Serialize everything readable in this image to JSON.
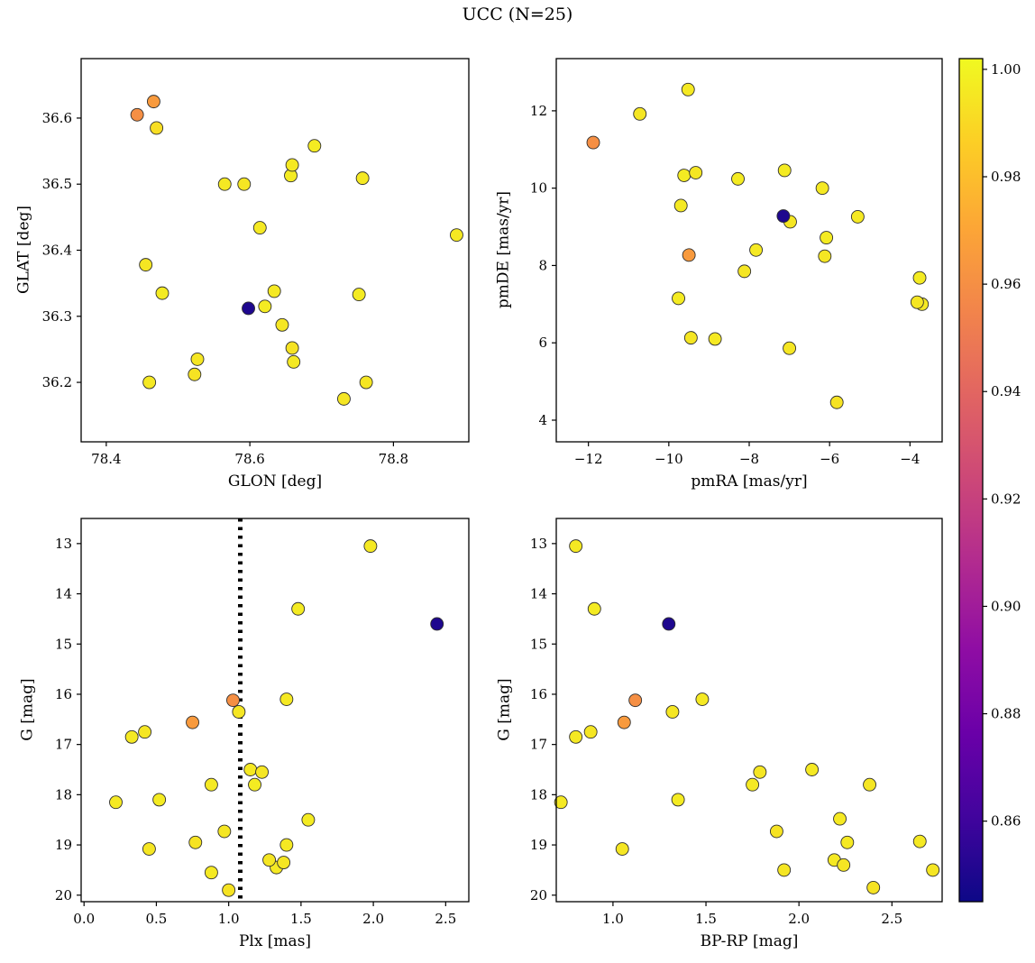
{
  "figure": {
    "title": "UCC (N=25)"
  },
  "colorbar": {
    "colormap": "plasma",
    "vmin": 0.845,
    "vmax": 1.002,
    "ticks": [
      [
        1.0,
        "1.00"
      ],
      [
        0.98,
        "0.98"
      ],
      [
        0.96,
        "0.96"
      ],
      [
        0.94,
        "0.94"
      ],
      [
        0.92,
        "0.92"
      ],
      [
        0.9,
        "0.90"
      ],
      [
        0.88,
        "0.88"
      ],
      [
        0.86,
        "0.86"
      ]
    ]
  },
  "point_format": "[x, y, color_value]",
  "chart_data": [
    {
      "type": "scatter",
      "xlabel": "GLON [deg]",
      "ylabel": "GLAT [deg]",
      "xlim": [
        78.365,
        78.905
      ],
      "ylim": [
        36.11,
        36.69
      ],
      "xticks": [
        [
          78.4,
          "78.4"
        ],
        [
          78.6,
          "78.6"
        ],
        [
          78.8,
          "78.8"
        ]
      ],
      "yticks": [
        [
          36.2,
          "36.2"
        ],
        [
          36.3,
          "36.3"
        ],
        [
          36.4,
          "36.4"
        ],
        [
          36.5,
          "36.5"
        ],
        [
          36.6,
          "36.6"
        ]
      ],
      "points": [
        [
          78.443,
          36.605,
          0.96
        ],
        [
          78.466,
          36.625,
          0.965
        ],
        [
          78.47,
          36.585,
          0.992
        ],
        [
          78.455,
          36.378,
          0.995
        ],
        [
          78.478,
          36.335,
          0.997
        ],
        [
          78.46,
          36.2,
          0.996
        ],
        [
          78.527,
          36.235,
          0.995
        ],
        [
          78.523,
          36.212,
          0.994
        ],
        [
          78.565,
          36.5,
          0.996
        ],
        [
          78.592,
          36.5,
          0.995
        ],
        [
          78.598,
          36.312,
          0.85
        ],
        [
          78.614,
          36.434,
          0.996
        ],
        [
          78.621,
          36.315,
          0.997
        ],
        [
          78.634,
          36.338,
          0.996
        ],
        [
          78.645,
          36.287,
          0.995
        ],
        [
          78.659,
          36.529,
          0.996
        ],
        [
          78.657,
          36.513,
          0.997
        ],
        [
          78.659,
          36.252,
          0.994
        ],
        [
          78.661,
          36.231,
          0.996
        ],
        [
          78.69,
          36.558,
          0.997
        ],
        [
          78.731,
          36.175,
          0.995
        ],
        [
          78.757,
          36.509,
          0.996
        ],
        [
          78.752,
          36.333,
          0.997
        ],
        [
          78.762,
          36.2,
          0.995
        ],
        [
          78.888,
          36.423,
          0.996
        ]
      ]
    },
    {
      "type": "scatter",
      "xlabel": "pmRA [mas/yr]",
      "ylabel": "pmDE [mas/yr]",
      "xlim": [
        -12.8,
        -3.2
      ],
      "ylim": [
        3.44,
        13.35
      ],
      "xticks": [
        [
          -12,
          "−12"
        ],
        [
          -10,
          "−10"
        ],
        [
          -8,
          "−8"
        ],
        [
          -6,
          "−6"
        ],
        [
          -4,
          "−4"
        ]
      ],
      "yticks": [
        [
          4,
          "4"
        ],
        [
          6,
          "6"
        ],
        [
          8,
          "8"
        ],
        [
          10,
          "10"
        ],
        [
          12,
          "12"
        ]
      ],
      "points": [
        [
          -11.88,
          11.18,
          0.96
        ],
        [
          -10.72,
          11.92,
          0.995
        ],
        [
          -9.52,
          12.55,
          0.996
        ],
        [
          -9.62,
          10.33,
          0.997
        ],
        [
          -9.33,
          10.4,
          0.995
        ],
        [
          -9.7,
          9.55,
          0.996
        ],
        [
          -9.5,
          8.27,
          0.965
        ],
        [
          -9.76,
          7.15,
          0.997
        ],
        [
          -9.45,
          6.13,
          0.995
        ],
        [
          -8.85,
          6.1,
          0.996
        ],
        [
          -8.28,
          10.24,
          0.997
        ],
        [
          -8.12,
          7.85,
          0.995
        ],
        [
          -7.83,
          8.4,
          0.996
        ],
        [
          -7.15,
          9.28,
          0.85
        ],
        [
          -6.98,
          9.13,
          0.995
        ],
        [
          -7.12,
          10.46,
          0.997
        ],
        [
          -7.0,
          5.86,
          0.995
        ],
        [
          -6.18,
          10.0,
          0.996
        ],
        [
          -6.08,
          8.72,
          0.997
        ],
        [
          -6.12,
          8.24,
          0.995
        ],
        [
          -5.82,
          4.46,
          0.994
        ],
        [
          -5.3,
          9.26,
          0.996
        ],
        [
          -3.76,
          7.68,
          0.997
        ],
        [
          -3.82,
          7.05,
          0.995
        ],
        [
          -3.7,
          7.0,
          0.996
        ]
      ]
    },
    {
      "type": "scatter",
      "xlabel": "Plx [mas]",
      "ylabel": "G [mag]",
      "xlim": [
        -0.02,
        2.66
      ],
      "ylim": [
        20.13,
        12.5
      ],
      "xticks": [
        [
          0.0,
          "0.0"
        ],
        [
          0.5,
          "0.5"
        ],
        [
          1.0,
          "1.0"
        ],
        [
          1.5,
          "1.5"
        ],
        [
          2.0,
          "2.0"
        ],
        [
          2.5,
          "2.5"
        ]
      ],
      "yticks": [
        [
          13,
          "13"
        ],
        [
          14,
          "14"
        ],
        [
          15,
          "15"
        ],
        [
          16,
          "16"
        ],
        [
          17,
          "17"
        ],
        [
          18,
          "18"
        ],
        [
          19,
          "19"
        ],
        [
          20,
          "20"
        ]
      ],
      "vline": 1.08,
      "points": [
        [
          1.98,
          13.05,
          0.996
        ],
        [
          1.48,
          14.3,
          0.997
        ],
        [
          2.44,
          14.6,
          0.85
        ],
        [
          1.03,
          16.12,
          0.96
        ],
        [
          1.4,
          16.1,
          0.996
        ],
        [
          1.07,
          16.35,
          0.995
        ],
        [
          0.75,
          16.56,
          0.965
        ],
        [
          0.33,
          16.85,
          0.996
        ],
        [
          0.42,
          16.75,
          0.995
        ],
        [
          0.22,
          18.15,
          0.996
        ],
        [
          0.52,
          18.1,
          0.997
        ],
        [
          0.45,
          19.08,
          0.995
        ],
        [
          0.77,
          18.95,
          0.994
        ],
        [
          0.88,
          17.8,
          0.996
        ],
        [
          0.97,
          18.73,
          0.995
        ],
        [
          0.88,
          19.55,
          0.996
        ],
        [
          1.0,
          19.9,
          0.994
        ],
        [
          1.15,
          17.5,
          0.996
        ],
        [
          1.23,
          17.55,
          0.995
        ],
        [
          1.18,
          17.8,
          0.997
        ],
        [
          1.28,
          19.3,
          0.995
        ],
        [
          1.33,
          19.45,
          0.996
        ],
        [
          1.38,
          19.35,
          0.995
        ],
        [
          1.4,
          19.0,
          0.996
        ],
        [
          1.55,
          18.5,
          0.997
        ]
      ]
    },
    {
      "type": "scatter",
      "xlabel": "BP-RP [mag]",
      "ylabel": "G [mag]",
      "xlim": [
        0.695,
        2.77
      ],
      "ylim": [
        20.13,
        12.5
      ],
      "xticks": [
        [
          1.0,
          "1.0"
        ],
        [
          1.5,
          "1.5"
        ],
        [
          2.0,
          "2.0"
        ],
        [
          2.5,
          "2.5"
        ]
      ],
      "yticks": [
        [
          13,
          "13"
        ],
        [
          14,
          "14"
        ],
        [
          15,
          "15"
        ],
        [
          16,
          "16"
        ],
        [
          17,
          "17"
        ],
        [
          18,
          "18"
        ],
        [
          19,
          "19"
        ],
        [
          20,
          "20"
        ]
      ],
      "points": [
        [
          0.8,
          13.05,
          0.996
        ],
        [
          0.9,
          14.3,
          0.997
        ],
        [
          1.3,
          14.6,
          0.85
        ],
        [
          1.12,
          16.12,
          0.96
        ],
        [
          1.48,
          16.1,
          0.996
        ],
        [
          1.32,
          16.35,
          0.995
        ],
        [
          1.06,
          16.56,
          0.965
        ],
        [
          0.8,
          16.85,
          0.996
        ],
        [
          0.88,
          16.75,
          0.995
        ],
        [
          0.72,
          18.15,
          0.996
        ],
        [
          1.35,
          18.1,
          0.997
        ],
        [
          1.05,
          19.08,
          0.995
        ],
        [
          1.75,
          17.8,
          0.996
        ],
        [
          1.79,
          17.55,
          0.995
        ],
        [
          2.07,
          17.5,
          0.996
        ],
        [
          2.38,
          17.8,
          0.995
        ],
        [
          1.88,
          18.73,
          0.994
        ],
        [
          2.22,
          18.48,
          0.996
        ],
        [
          1.92,
          19.5,
          0.995
        ],
        [
          2.19,
          19.3,
          0.996
        ],
        [
          2.24,
          19.4,
          0.995
        ],
        [
          2.26,
          18.95,
          0.996
        ],
        [
          2.4,
          19.85,
          0.994
        ],
        [
          2.65,
          18.93,
          0.996
        ],
        [
          2.72,
          19.5,
          0.995
        ]
      ]
    }
  ]
}
